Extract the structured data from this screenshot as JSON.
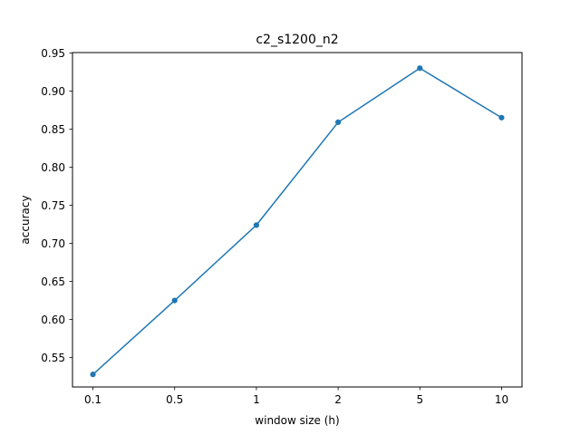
{
  "chart_data": {
    "type": "line",
    "title": "c2_s1200_n2",
    "xlabel": "window size (h)",
    "ylabel": "accuracy",
    "categories": [
      "0.1",
      "0.5",
      "1",
      "2",
      "5",
      "10"
    ],
    "series": [
      {
        "values": [
          0.528,
          0.625,
          0.724,
          0.859,
          0.93,
          0.865
        ],
        "color": "#1f77b4",
        "marker": "circle"
      }
    ],
    "ylim": [
      0.5115,
      0.9505
    ],
    "yticks": [
      "0.55",
      "0.60",
      "0.65",
      "0.70",
      "0.75",
      "0.80",
      "0.85",
      "0.90",
      "0.95"
    ],
    "grid": false,
    "legend": "none"
  }
}
